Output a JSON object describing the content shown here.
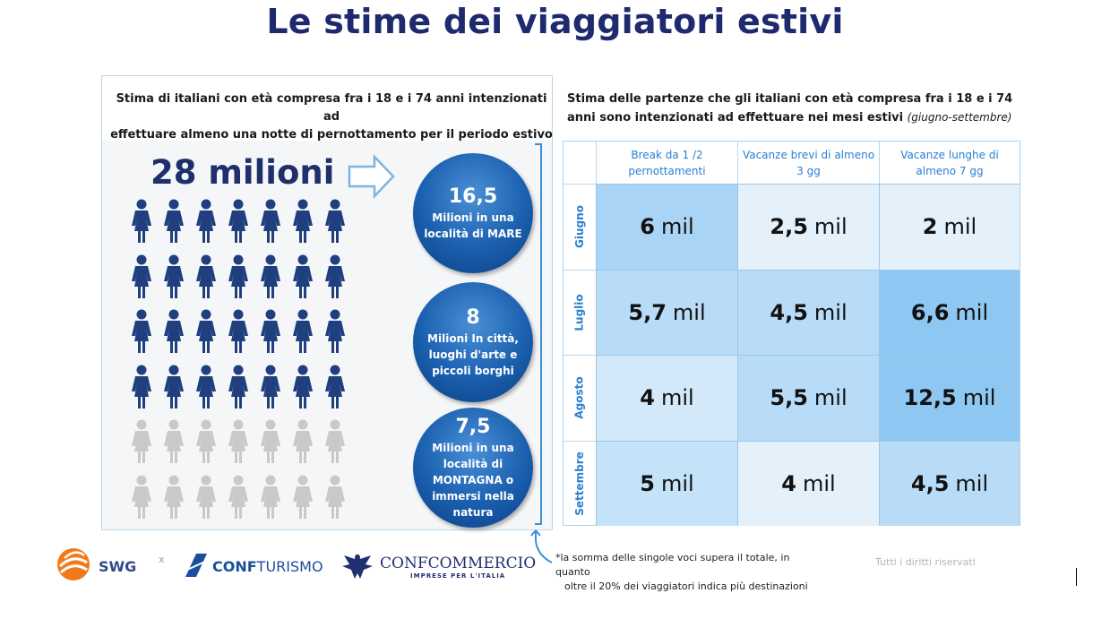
{
  "title": "Le stime dei viaggiatori estivi",
  "left": {
    "heading_line1": "Stima di italiani con età compresa fra i 18 e i 74 anni intenzionati ad",
    "heading_line2": "effettuare almeno una notte di pernottamento per il periodo estivo",
    "total": "28 milioni",
    "people": {
      "total_icons": 42,
      "filled_icons": 28,
      "filled_color": "#1f3f7f",
      "empty_color": "#c9c9c9"
    },
    "circles": [
      {
        "num": "16,5",
        "text": "Milioni  in una località  di MARE"
      },
      {
        "num": "8",
        "text": "Milioni In città, luoghi d'arte e piccoli borghi"
      },
      {
        "num": "7,5",
        "text": "Milioni in una località di MONTAGNA o immersi nella natura"
      }
    ]
  },
  "right": {
    "heading": "Stima delle partenze che gli italiani con età compresa fra i 18 e i 74 anni sono intenzionati ad effettuare nei mesi estivi",
    "heading_note": "(giugno-settembre)",
    "columns": [
      "Break da 1 /2 pernottamenti",
      "Vacanze brevi di almeno 3 gg",
      "Vacanze lunghe di almeno 7 gg"
    ],
    "rows": [
      {
        "label": "Giugno",
        "cells": [
          {
            "v": "6",
            "u": "mil",
            "bg": "#a9d4f5"
          },
          {
            "v": "2,5",
            "u": "mil",
            "bg": "#e4f1fb"
          },
          {
            "v": "2",
            "u": "mil",
            "bg": "#e4f1fb"
          }
        ]
      },
      {
        "label": "Luglio",
        "cells": [
          {
            "v": "5,7",
            "u": "mil",
            "bg": "#b8dcf7"
          },
          {
            "v": "4,5",
            "u": "mil",
            "bg": "#b8dcf7"
          },
          {
            "v": "6,6",
            "u": "mil",
            "bg": "#8ec7f2"
          }
        ]
      },
      {
        "label": "Agosto",
        "cells": [
          {
            "v": "4",
            "u": "mil",
            "bg": "#d3e9fa"
          },
          {
            "v": "5,5",
            "u": "mil",
            "bg": "#b8dcf7"
          },
          {
            "v": "12,5",
            "u": "mil",
            "bg": "#8ec7f2"
          }
        ]
      },
      {
        "label": "Settembre",
        "cells": [
          {
            "v": "5",
            "u": "mil",
            "bg": "#c4e2f8"
          },
          {
            "v": "4",
            "u": "mil",
            "bg": "#e4f1fb"
          },
          {
            "v": "4,5",
            "u": "mil",
            "bg": "#b8dcf7"
          }
        ]
      }
    ]
  },
  "footer": {
    "swg": "SWG",
    "separator": "x",
    "conf_bold": "CONF",
    "conf_rest": "TURISMO",
    "confcommercio": "CONFCOMMERCIO",
    "confcommercio_sub": "IMPRESE PER L'ITALIA",
    "note_line1": "*la somma delle singole voci supera il totale, in quanto",
    "note_line2": "oltre il 20% dei viaggiatori indica più destinazioni",
    "rights": "Tutti i diritti riservati"
  },
  "icons": {
    "person": "person-icon",
    "arrow": "right-arrow-icon",
    "up_arrow": "up-arrow-icon",
    "swg_logo": "swg-logo-icon",
    "conf_logo": "confturismo-logo-icon",
    "eagle": "eagle-logo-icon"
  }
}
